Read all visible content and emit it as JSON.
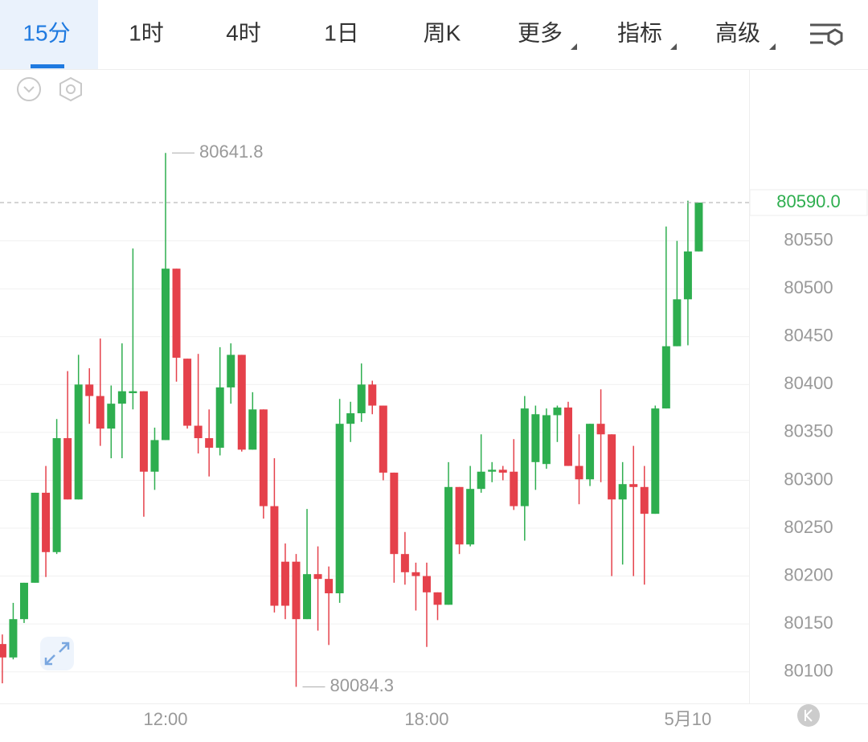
{
  "tabs": [
    "15分",
    "1时",
    "4时",
    "1日",
    "周K",
    "更多",
    "指标",
    "高级"
  ],
  "chart_data": {
    "type": "candlestick",
    "categories": [
      null,
      null,
      null,
      null,
      null,
      null,
      null,
      null,
      null,
      null,
      null,
      null,
      null,
      null,
      null,
      "12:00",
      null,
      null,
      null,
      null,
      null,
      null,
      null,
      null,
      null,
      null,
      null,
      null,
      null,
      null,
      null,
      null,
      null,
      null,
      null,
      null,
      null,
      null,
      null,
      "18:00",
      null,
      null,
      null,
      null,
      null,
      null,
      null,
      null,
      null,
      null,
      null,
      null,
      null,
      null,
      null,
      null,
      null,
      null,
      null,
      null,
      null,
      null,
      null,
      "5月10",
      null
    ],
    "open": [
      80129,
      80115,
      80155,
      80193,
      80287,
      80225,
      80344,
      80280,
      80400,
      80388,
      80354,
      80380,
      80391,
      80393,
      80309,
      80342,
      80521,
      80427,
      80357,
      80344,
      80334,
      80397,
      80431,
      80332,
      80374,
      80273,
      80215,
      80215,
      80155,
      80202,
      80197,
      80182,
      80359,
      80370,
      80400,
      80378,
      80308,
      80223,
      80204,
      80200,
      80183,
      80170,
      80293,
      80233,
      80291,
      80309,
      80311,
      80309,
      80273,
      80319,
      80317,
      80368,
      80376,
      80315,
      80301,
      80359,
      80348,
      80280,
      80296,
      80293,
      80265,
      80375,
      80440,
      80489,
      80539
    ],
    "high": [
      80139,
      80172,
      80193,
      80287,
      80315,
      80364,
      80414,
      80431,
      80417,
      80448,
      80399,
      80443,
      80542,
      80393,
      80355,
      80641.8,
      80521,
      80427,
      80432,
      80374,
      80439,
      80443,
      80431,
      80392,
      80374,
      80323,
      80234,
      80223,
      80270,
      80231,
      80210,
      80385,
      80382,
      80422,
      80404,
      80378,
      80308,
      80246,
      80214,
      80214,
      80183,
      80319,
      80293,
      80315,
      80348,
      80319,
      80315,
      80343,
      80388,
      80378,
      80375,
      80378,
      80382,
      80348,
      80359,
      80395,
      80348,
      80319,
      80336,
      80315,
      80378,
      80565,
      80550,
      80592,
      80590
    ],
    "low": [
      80088,
      80113,
      80151,
      80193,
      80199,
      80223,
      80280,
      80280,
      80359,
      80336,
      80323,
      80323,
      80374,
      80262,
      80290,
      80342,
      80403,
      80354,
      80328,
      80304,
      80326,
      80380,
      80330,
      80332,
      80260,
      80162,
      80155,
      80084.3,
      80155,
      80143,
      80128,
      80172,
      80340,
      80361,
      80369,
      80300,
      80193,
      80191,
      80164,
      80126,
      80154,
      80170,
      80223,
      80231,
      80287,
      80298,
      80300,
      80269,
      80237,
      80290,
      80312,
      80340,
      80315,
      80275,
      80294,
      80298,
      80200,
      80212,
      80200,
      80191,
      80265,
      80375,
      80440,
      80441,
      80539
    ],
    "close": [
      80115,
      80155,
      80193,
      80287,
      80225,
      80344,
      80280,
      80400,
      80388,
      80354,
      80380,
      80393,
      80393,
      80309,
      80342,
      80521,
      80428,
      80357,
      80344,
      80334,
      80397,
      80431,
      80332,
      80374,
      80273,
      80169,
      80169,
      80155,
      80202,
      80197,
      80182,
      80359,
      80370,
      80400,
      80378,
      80308,
      80223,
      80204,
      80200,
      80183,
      80170,
      80293,
      80233,
      80291,
      80309,
      80311,
      80308,
      80273,
      80375,
      80369,
      80368,
      80376,
      80315,
      80301,
      80359,
      80348,
      80280,
      80296,
      80293,
      80265,
      80375,
      80440,
      80489,
      80539,
      80590
    ],
    "up_color": "#2eae4f",
    "down_color": "#e5414b",
    "ylim": [
      80067,
      80726
    ],
    "yticks": [
      80100,
      80150,
      80200,
      80250,
      80300,
      80350,
      80400,
      80450,
      80500,
      80550
    ],
    "grid": true,
    "last_price": {
      "value": 80590,
      "label": "80590.0"
    },
    "max_index": 15,
    "min_index": 27
  }
}
